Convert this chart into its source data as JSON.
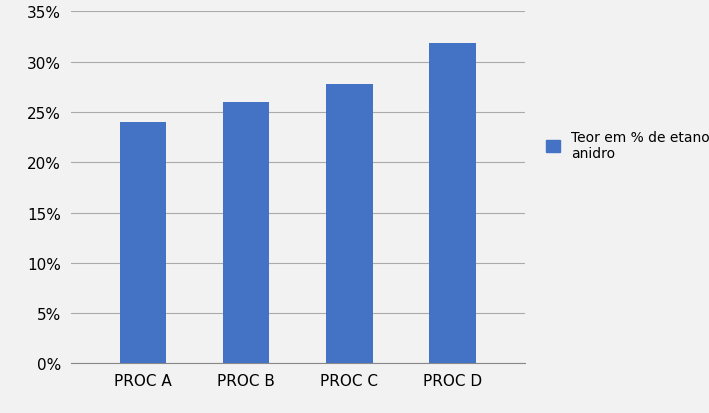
{
  "categories": [
    "PROC A",
    "PROC B",
    "PROC C",
    "PROC D"
  ],
  "values": [
    0.24,
    0.26,
    0.278,
    0.319
  ],
  "bar_color": "#4472C4",
  "ylim": [
    0,
    0.35
  ],
  "yticks": [
    0.0,
    0.05,
    0.1,
    0.15,
    0.2,
    0.25,
    0.3,
    0.35
  ],
  "legend_label": "Teor em % de etanol\nanidro",
  "legend_color": "#4472C4",
  "background_color": "#f2f2f2",
  "grid_color": "#aaaaaa",
  "bar_width": 0.45,
  "tick_fontsize": 11
}
